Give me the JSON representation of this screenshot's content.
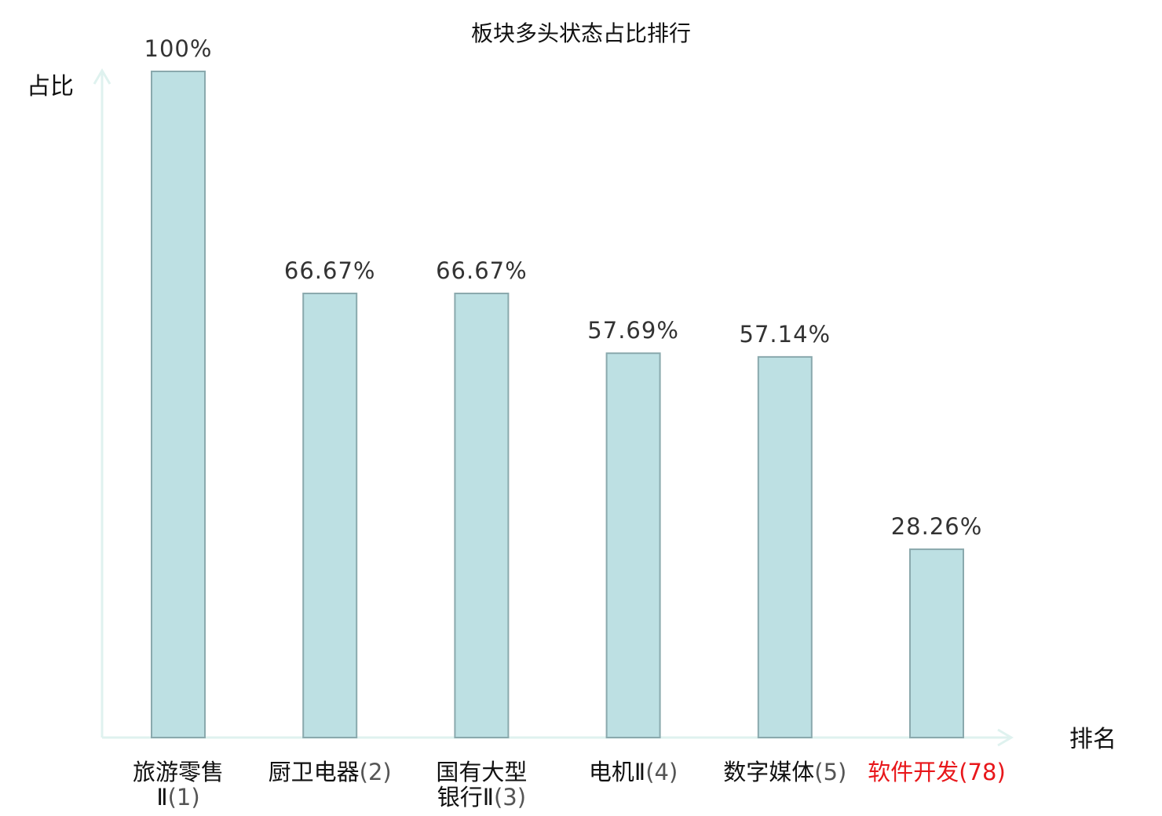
{
  "chart_data": {
    "type": "bar",
    "title": "板块多头状态占比排行",
    "xlabel": "排名",
    "ylabel": "占比",
    "ylim": [
      0,
      100
    ],
    "categories": [
      {
        "name_lines": [
          "旅游零售",
          "Ⅱ"
        ],
        "rank": "(1)",
        "highlight": false
      },
      {
        "name_lines": [
          "厨卫电器"
        ],
        "rank": "(2)",
        "highlight": false
      },
      {
        "name_lines": [
          "国有大型",
          "银行Ⅱ"
        ],
        "rank": "(3)",
        "highlight": false
      },
      {
        "name_lines": [
          "电机Ⅱ"
        ],
        "rank": "(4)",
        "highlight": false
      },
      {
        "name_lines": [
          "数字媒体"
        ],
        "rank": "(5)",
        "highlight": false
      },
      {
        "name_lines": [
          "软件开发"
        ],
        "rank": "(78)",
        "highlight": true
      }
    ],
    "values": [
      100,
      66.67,
      66.67,
      57.69,
      57.14,
      28.26
    ],
    "value_labels": [
      "100%",
      "66.67%",
      "66.67%",
      "57.69%",
      "57.14%",
      "28.26%"
    ],
    "grid": false,
    "legend": "none",
    "colors": {
      "bar_fill": "#bde0e3",
      "bar_stroke": "#8aa9ad",
      "axis": "#dff2ef",
      "label_normal_name": "#111111",
      "label_normal_rank": "#555555",
      "label_highlight": "#e8171b"
    }
  }
}
